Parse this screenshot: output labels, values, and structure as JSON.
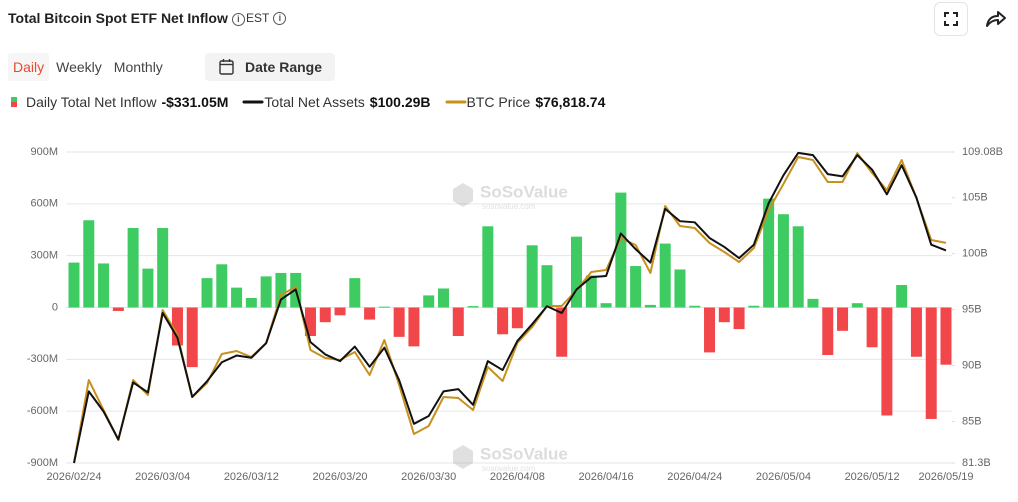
{
  "header": {
    "title": "Total Bitcoin Spot ETF Net Inflow",
    "timezone": "EST"
  },
  "controls": {
    "tabs": [
      "Daily",
      "Weekly",
      "Monthly"
    ],
    "active_tab": "Daily",
    "date_range": "Date Range"
  },
  "chart_data": {
    "type": "bar",
    "watermark": "SoSoValue",
    "watermark_url": "sosovalue.com",
    "categories": [
      "2026/02/24",
      null,
      null,
      null,
      null,
      null,
      "2026/03/04",
      null,
      null,
      null,
      null,
      null,
      "2026/03/12",
      null,
      null,
      null,
      null,
      null,
      "2026/03/20",
      null,
      null,
      null,
      null,
      null,
      "2026/03/30",
      null,
      null,
      null,
      null,
      null,
      "2026/04/08",
      null,
      null,
      null,
      null,
      null,
      "2026/04/16",
      null,
      null,
      null,
      null,
      null,
      "2026/04/24",
      null,
      null,
      null,
      null,
      null,
      "2026/05/04",
      null,
      null,
      null,
      null,
      null,
      "2026/05/12",
      null,
      null,
      null,
      null,
      "2026/05/19"
    ],
    "ylim": [
      -900,
      900
    ],
    "yticks": [
      {
        "value": 900,
        "label": "900M"
      },
      {
        "value": 600,
        "label": "600M"
      },
      {
        "value": 300,
        "label": "300M"
      },
      0,
      {
        "value": -300,
        "label": "-300M"
      },
      {
        "value": -600,
        "label": "-600M"
      },
      {
        "value": -900,
        "label": "-900M"
      }
    ],
    "y2lim": [
      81.3,
      109.08
    ],
    "y2ticks": [
      {
        "value": 109.08,
        "label": "109.08B"
      },
      {
        "value": 105,
        "label": "105B"
      },
      {
        "value": 100,
        "label": "100B"
      },
      {
        "value": 95,
        "label": "95B"
      },
      {
        "value": 90,
        "label": "90B"
      },
      {
        "value": 85,
        "label": "85B"
      },
      {
        "value": 81.3,
        "label": "81.3B"
      }
    ],
    "y3lim": [
      57000,
      85000
    ],
    "grid": true,
    "series": [
      {
        "name": "Daily Total Net Inflow",
        "type": "bar",
        "legend_value": "-$331.05M",
        "color": "#3ecb62",
        "negative_color": "#f2474a",
        "values": [
          260,
          505,
          255,
          -20,
          460,
          225,
          460,
          -220,
          -345,
          170,
          250,
          115,
          55,
          180,
          200,
          200,
          -165,
          -85,
          -45,
          170,
          -70,
          5,
          -170,
          -225,
          70,
          110,
          -165,
          8,
          470,
          -155,
          -120,
          360,
          245,
          -285,
          410,
          185,
          25,
          665,
          240,
          15,
          370,
          220,
          10,
          -260,
          -85,
          -125,
          10,
          630,
          540,
          470,
          50,
          -275,
          -135,
          25,
          -230,
          -625,
          130,
          -285,
          -645,
          -331.05
        ]
      },
      {
        "name": "Total Net Assets",
        "type": "line",
        "axis": "y2",
        "legend_value": "$100.29B",
        "color": "#111111",
        "values": [
          81.3,
          87.7,
          85.9,
          83.4,
          88.5,
          87.6,
          94.7,
          92.5,
          87.2,
          88.6,
          90.3,
          90.9,
          90.7,
          92.0,
          95.9,
          96.8,
          92.1,
          91.0,
          90.4,
          91.7,
          89.9,
          91.6,
          88.7,
          84.8,
          85.5,
          87.7,
          87.9,
          86.5,
          90.4,
          89.6,
          92.2,
          93.7,
          95.3,
          94.7,
          96.8,
          97.9,
          98.0,
          101.8,
          100.4,
          99.2,
          104.0,
          102.9,
          102.8,
          101.4,
          100.6,
          99.6,
          100.8,
          104.5,
          107.0,
          109.0,
          108.8,
          107.1,
          106.9,
          108.8,
          107.5,
          105.3,
          107.9,
          105.0,
          100.8,
          100.29
        ]
      },
      {
        "name": "BTC Price",
        "type": "line",
        "axis": "y3",
        "legend_value": "$76,818.74",
        "color": "#c8901e",
        "values": [
          57000,
          64472,
          61772,
          59071,
          64472,
          63122,
          70775,
          68524,
          62942,
          64202,
          66813,
          67083,
          66543,
          67804,
          72125,
          72845,
          67173,
          66453,
          66273,
          66993,
          64923,
          68074,
          64022,
          59611,
          60331,
          62942,
          62852,
          61772,
          65643,
          64382,
          67804,
          69244,
          71135,
          71135,
          72575,
          74196,
          74376,
          77257,
          76627,
          74106,
          80138,
          78337,
          78157,
          76807,
          75997,
          75096,
          76357,
          79778,
          82118,
          84549,
          84279,
          82298,
          82298,
          84900,
          83108,
          81578,
          84279,
          80858,
          77077,
          76818.74
        ]
      }
    ]
  }
}
